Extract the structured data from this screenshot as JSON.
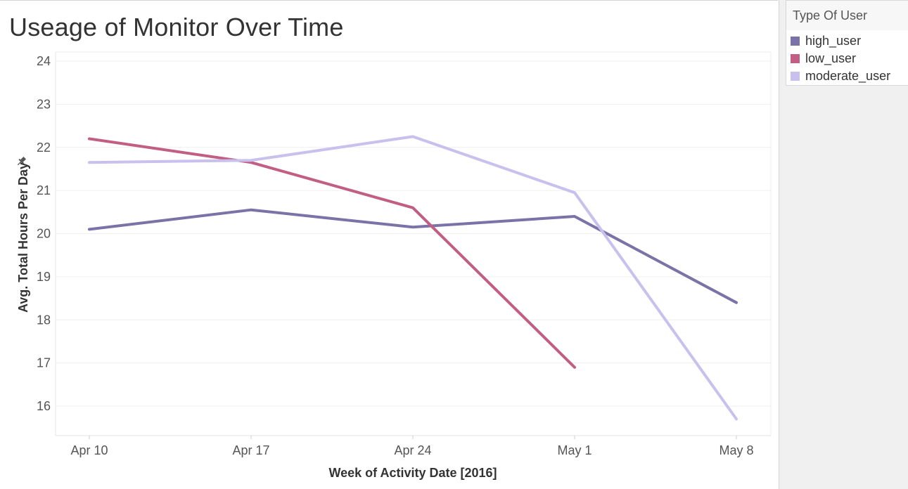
{
  "chart_data": {
    "type": "line",
    "title": "Useage of Monitor Over Time",
    "xlabel": "Week of Activity Date [2016]",
    "ylabel": "Avg. Total Hours Per Day",
    "ylabel_icon": "pin-icon",
    "categories": [
      "Apr 10",
      "Apr 17",
      "Apr 24",
      "May 1",
      "May 8"
    ],
    "ylim": [
      15.5,
      24.2
    ],
    "yticks": [
      16,
      17,
      18,
      19,
      20,
      21,
      22,
      23,
      24
    ],
    "grid": true,
    "legend_position": "right",
    "legend_title": "Type Of User",
    "series": [
      {
        "name": "high_user",
        "color": "#7b72a8",
        "values": [
          20.1,
          20.55,
          20.15,
          20.4,
          18.4
        ]
      },
      {
        "name": "low_user",
        "color": "#c25e84",
        "values": [
          22.2,
          21.65,
          20.6,
          16.9,
          null
        ]
      },
      {
        "name": "moderate_user",
        "color": "#c9c0ee",
        "values": [
          21.65,
          21.7,
          22.25,
          20.95,
          15.7
        ]
      }
    ]
  }
}
